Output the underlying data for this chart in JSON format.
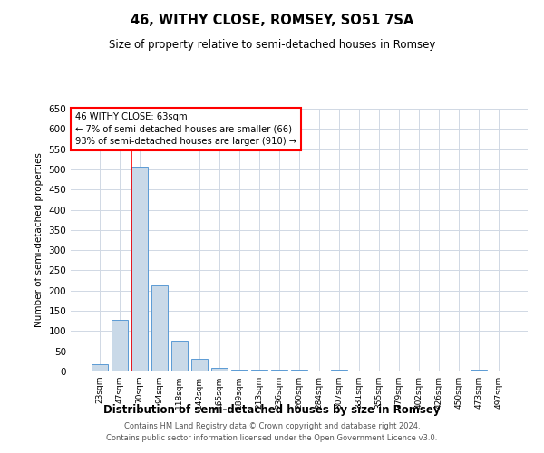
{
  "title": "46, WITHY CLOSE, ROMSEY, SO51 7SA",
  "subtitle": "Size of property relative to semi-detached houses in Romsey",
  "xlabel": "Distribution of semi-detached houses by size in Romsey",
  "ylabel": "Number of semi-detached properties",
  "footer_line1": "Contains HM Land Registry data © Crown copyright and database right 2024.",
  "footer_line2": "Contains public sector information licensed under the Open Government Licence v3.0.",
  "categories": [
    "23sqm",
    "47sqm",
    "70sqm",
    "94sqm",
    "118sqm",
    "142sqm",
    "165sqm",
    "189sqm",
    "213sqm",
    "236sqm",
    "260sqm",
    "284sqm",
    "307sqm",
    "331sqm",
    "355sqm",
    "379sqm",
    "402sqm",
    "426sqm",
    "450sqm",
    "473sqm",
    "497sqm"
  ],
  "values": [
    18,
    127,
    507,
    213,
    77,
    31,
    8,
    5,
    4,
    4,
    4,
    0,
    5,
    0,
    0,
    0,
    0,
    0,
    0,
    5,
    0
  ],
  "bar_color": "#c9d9e8",
  "bar_edge_color": "#5b9bd5",
  "red_line_x": 2,
  "annotation_title": "46 WITHY CLOSE: 63sqm",
  "annotation_line1": "← 7% of semi-detached houses are smaller (66)",
  "annotation_line2": "93% of semi-detached houses are larger (910) →",
  "ylim": [
    0,
    650
  ],
  "yticks": [
    0,
    50,
    100,
    150,
    200,
    250,
    300,
    350,
    400,
    450,
    500,
    550,
    600,
    650
  ],
  "background_color": "#ffffff",
  "grid_color": "#d0d8e4"
}
